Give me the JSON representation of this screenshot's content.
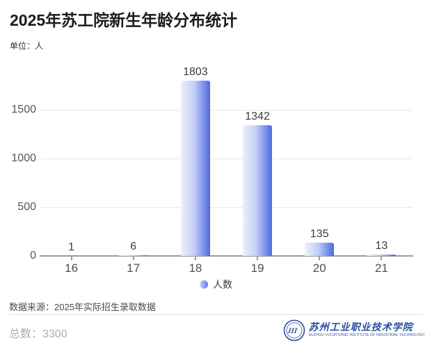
{
  "page": {
    "title": "2025年苏工院新生年龄分布统计",
    "unit_label": "单位：人"
  },
  "chart_data": {
    "type": "bar",
    "title": "2025年苏工院新生年龄分布统计",
    "unit": "人",
    "categories": [
      "16",
      "17",
      "18",
      "19",
      "20",
      "21"
    ],
    "values": [
      1,
      6,
      1803,
      1342,
      135,
      13
    ],
    "series_label": "人数",
    "xlabel": "",
    "ylabel": "",
    "yticks": [
      0,
      500,
      1000,
      1500
    ],
    "ylim": [
      0,
      1900
    ],
    "grid": true,
    "legend_position": "bottom",
    "colors": {
      "bar_gradient_start": "#EEF1FC",
      "bar_gradient_end": "#4D6AE2",
      "gridline": "#E7E7E7",
      "axis": "#9B9B9B"
    }
  },
  "footer": {
    "source": "数据来源：2025年实际招生录取数据",
    "total": "总数：3300",
    "logo": {
      "emblem_text": "III",
      "name_cn": "苏州工业职业技术学院",
      "name_en": "SUZHOU VOCATIONAL INSTITUTE OF INDUSTRIAL TECHNOLOGY",
      "color": "#2B4DA0"
    }
  }
}
